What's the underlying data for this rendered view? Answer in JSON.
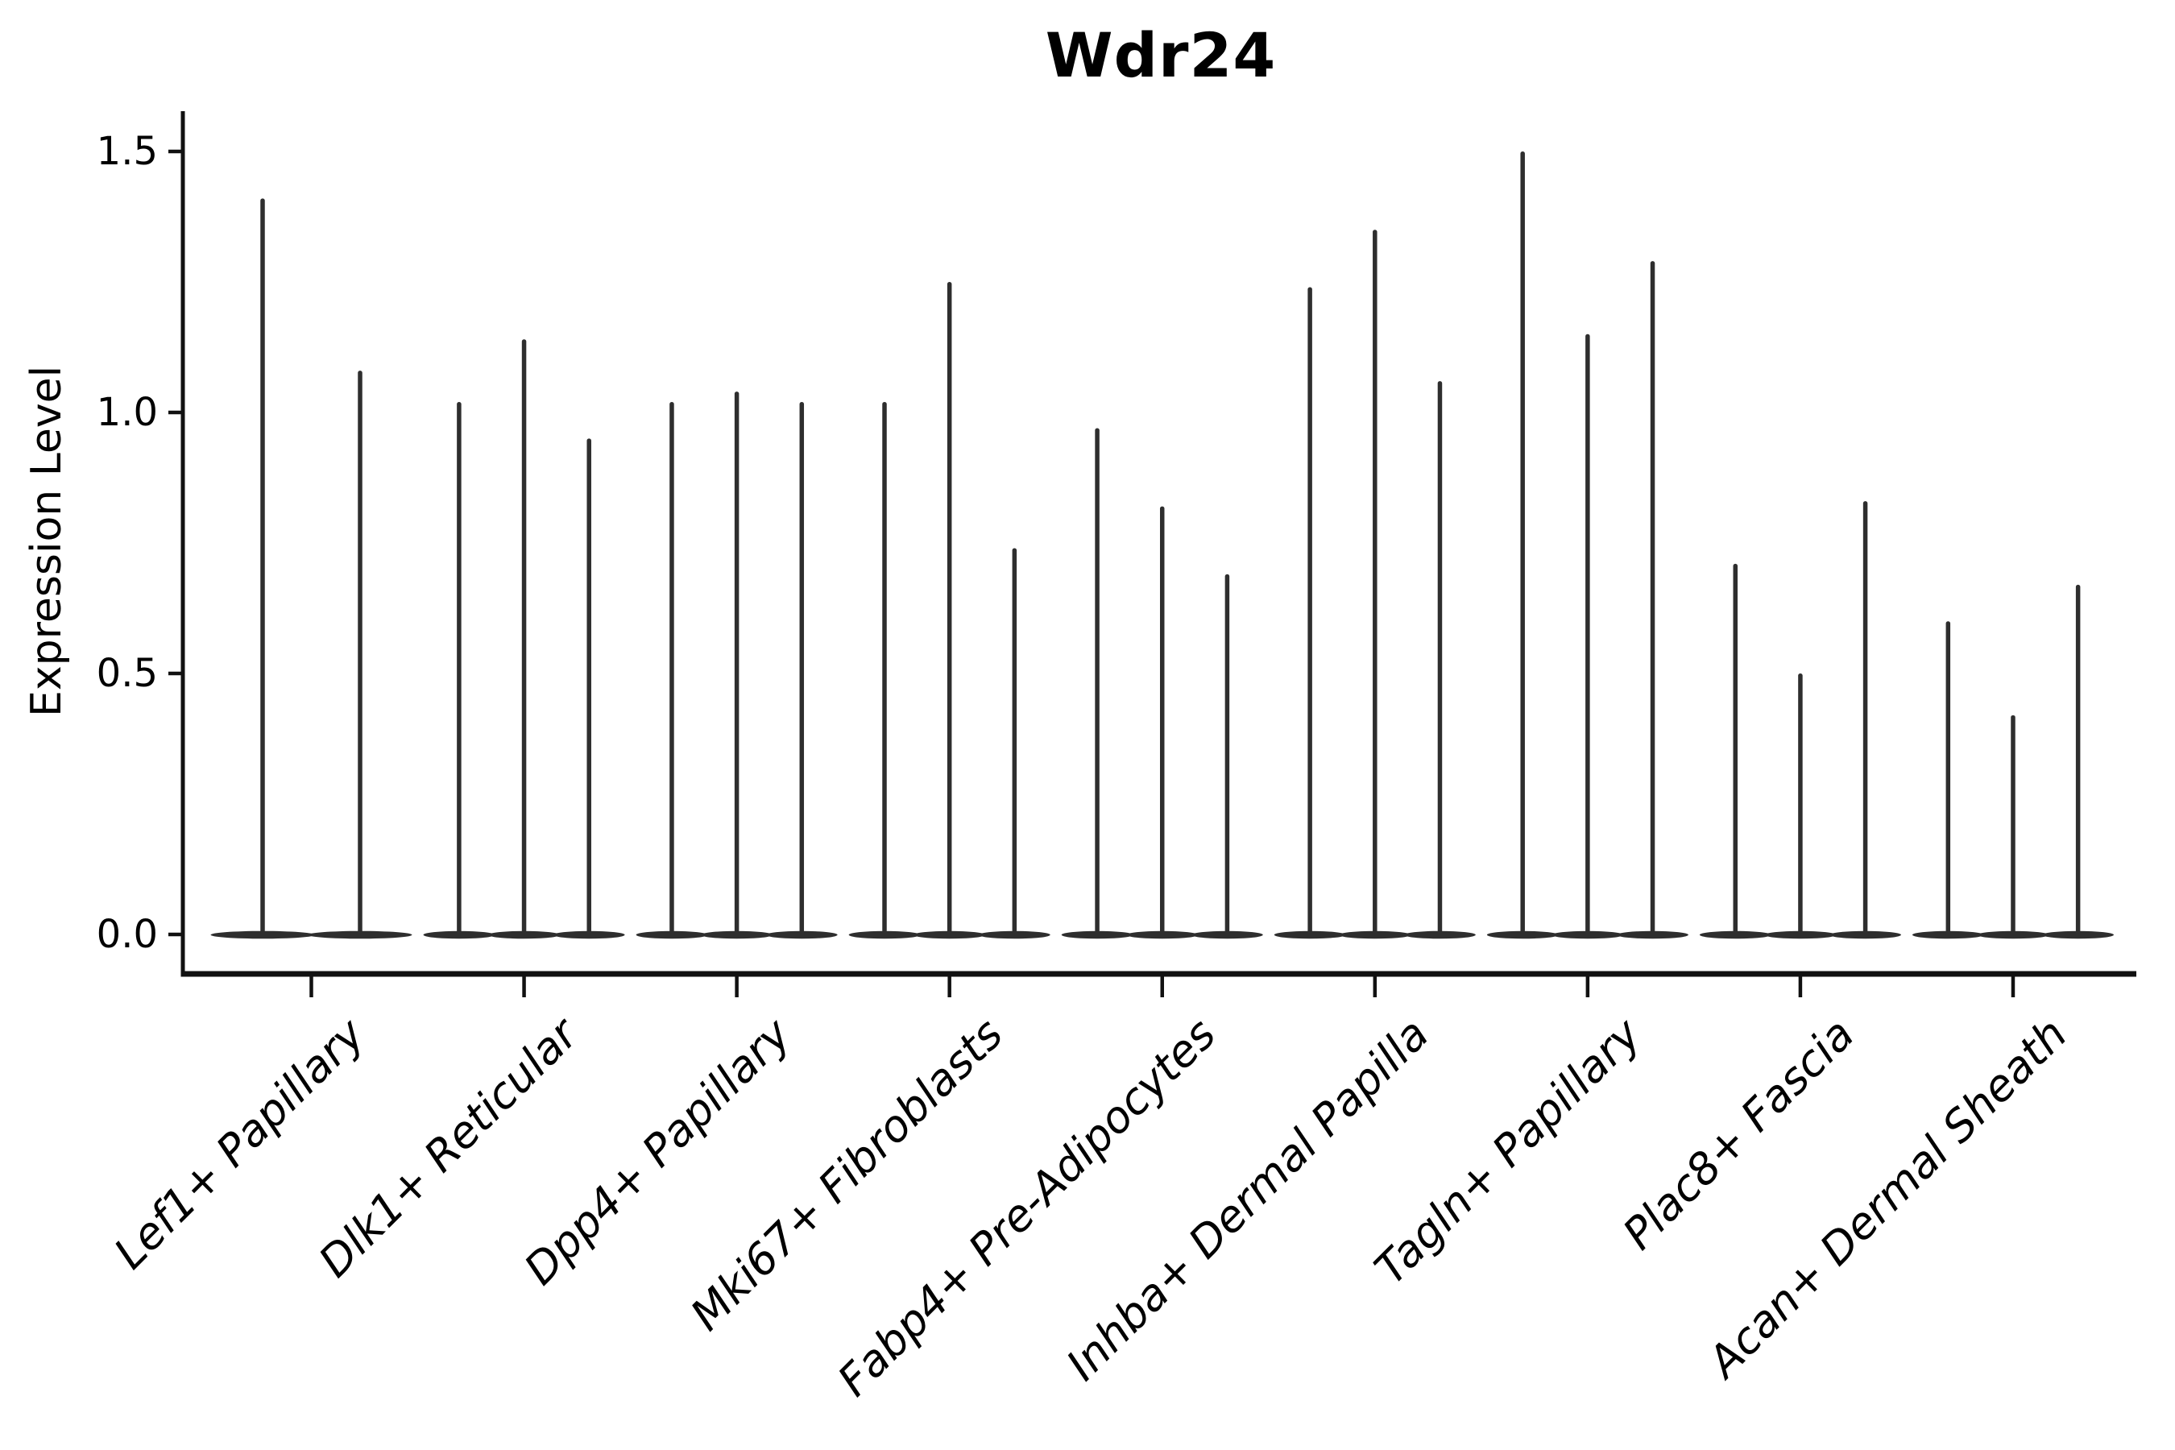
{
  "title": "Wdr24",
  "y_axis": {
    "label": "Expression Level",
    "tick_labels": [
      "0.0",
      "0.5",
      "1.0",
      "1.5"
    ],
    "tick_values": [
      0.0,
      0.5,
      1.0,
      1.5
    ]
  },
  "x_axis": {
    "categories": [
      "Lef1+ Papillary",
      "Dlk1+ Reticular",
      "Dpp4+ Papillary",
      "Mki67+ Fibroblasts",
      "Fabp4+ Pre-Adipocytes",
      "Inhba+ Dermal Papilla",
      "Tagln+ Papillary",
      "Plac8+ Fascia",
      "Acan+ Dermal Sheath"
    ]
  },
  "colors": {
    "violin": "#2e2e2e",
    "axis": "#111111",
    "text": "#000000",
    "background": "#ffffff"
  },
  "chart_data": {
    "type": "violin",
    "title": "Wdr24",
    "xlabel": "",
    "ylabel": "Expression Level",
    "ylim": [
      -0.07,
      1.57
    ],
    "yticks": [
      0.0,
      0.5,
      1.0,
      1.5
    ],
    "grid": false,
    "legend": "none",
    "style_note": "needle-thin violins: vertical spike up to max expression with wide flat base at 0; bases of violins within a category merge into one bar",
    "categories": [
      "Lef1+ Papillary",
      "Dlk1+ Reticular",
      "Dpp4+ Papillary",
      "Mki67+ Fibroblasts",
      "Fabp4+ Pre-Adipocytes",
      "Inhba+ Dermal Papilla",
      "Tagln+ Papillary",
      "Plac8+ Fascia",
      "Acan+ Dermal Sheath"
    ],
    "series": [
      {
        "category": "Lef1+ Papillary",
        "violin_max_values": [
          1.41,
          1.08
        ]
      },
      {
        "category": "Dlk1+ Reticular",
        "violin_max_values": [
          1.02,
          1.14,
          0.95
        ]
      },
      {
        "category": "Dpp4+ Papillary",
        "violin_max_values": [
          1.02,
          1.04,
          1.02
        ]
      },
      {
        "category": "Mki67+ Fibroblasts",
        "violin_max_values": [
          1.02,
          1.25,
          0.74
        ]
      },
      {
        "category": "Fabp4+ Pre-Adipocytes",
        "violin_max_values": [
          0.97,
          0.82,
          0.69
        ]
      },
      {
        "category": "Inhba+ Dermal Papilla",
        "violin_max_values": [
          1.24,
          1.35,
          1.06
        ]
      },
      {
        "category": "Tagln+ Papillary",
        "violin_max_values": [
          1.5,
          1.15,
          1.29
        ]
      },
      {
        "category": "Plac8+ Fascia",
        "violin_max_values": [
          0.71,
          0.5,
          0.83
        ]
      },
      {
        "category": "Acan+ Dermal Sheath",
        "violin_max_values": [
          0.6,
          0.42,
          0.67
        ]
      }
    ]
  }
}
